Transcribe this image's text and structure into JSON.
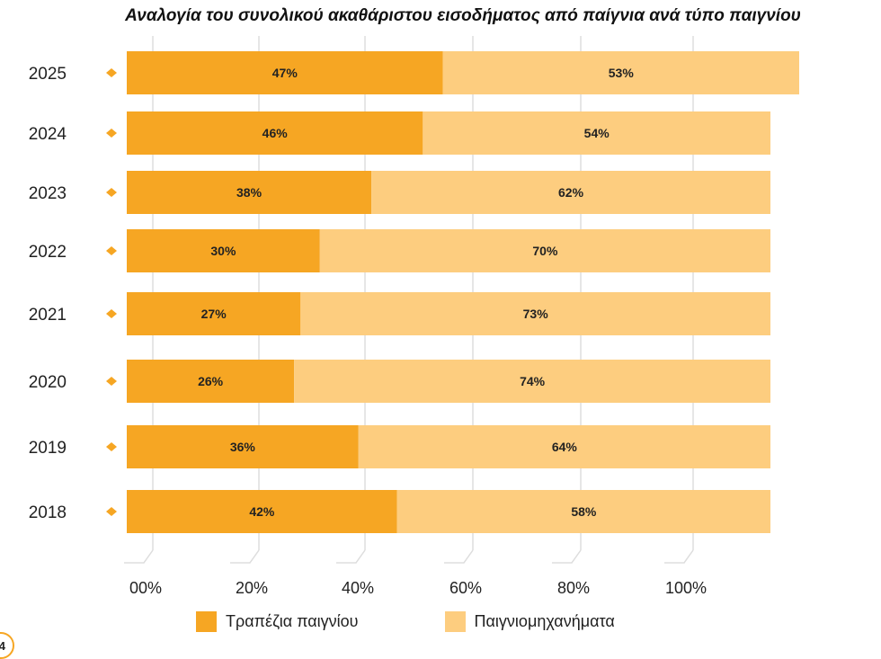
{
  "page": {
    "page_number": "4"
  },
  "colors": {
    "table_games": "#f6a623",
    "slot_machines": "#fdcd7f",
    "marker": "#f6a623",
    "gridline": "#dddddd"
  },
  "chart_data": {
    "type": "bar",
    "orientation": "horizontal",
    "stacked": true,
    "title": "Αναλογία του συνολικού ακαθάριστου εισοδήματος από παίγνια ανά τύπο παιγνίου",
    "categories": [
      "2025",
      "2024",
      "2023",
      "2022",
      "2021",
      "2020",
      "2019",
      "2018"
    ],
    "series": [
      {
        "name": "Τραπέζια παιγνίου",
        "values": [
          47,
          46,
          38,
          30,
          27,
          26,
          36,
          42
        ],
        "labels": [
          "47%",
          "46%",
          "38%",
          "30%",
          "27%",
          "26%",
          "36%",
          "42%"
        ]
      },
      {
        "name": "Παιγνιομηχανήματα",
        "values": [
          53,
          54,
          62,
          70,
          73,
          74,
          64,
          58
        ],
        "labels": [
          "53%",
          "54%",
          "62%",
          "70%",
          "73%",
          "74%",
          "64%",
          "58%"
        ]
      }
    ],
    "x_ticks": [
      "00%",
      "20%",
      "40%",
      "60%",
      "80%",
      "100%"
    ],
    "xlim": [
      0,
      100
    ],
    "grid": true,
    "legend": "bottom"
  }
}
